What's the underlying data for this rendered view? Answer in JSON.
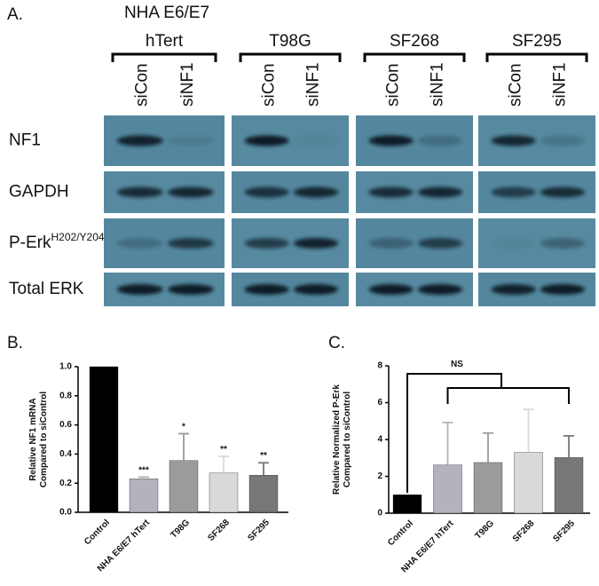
{
  "blot": {
    "panel_label": "A.",
    "cell_lines": [
      [
        "NHA E6/E7",
        "hTert"
      ],
      [
        "T98G"
      ],
      [
        "SF268"
      ],
      [
        "SF295"
      ]
    ],
    "lanes": [
      "siCon",
      "siNF1"
    ],
    "rows": [
      {
        "name": "NF1"
      },
      {
        "name": "GAPDH"
      },
      {
        "name": "P-Erk",
        "sup": "H202/Y204"
      },
      {
        "name": "Total ERK"
      }
    ]
  },
  "chart_data": [
    {
      "type": "bar",
      "panel_label": "B.",
      "y_label": [
        "Relative NF1 mRNA",
        "Compared to siControl"
      ],
      "categories": [
        "Control",
        "NHA E6/E7 hTert",
        "T98G",
        "SF268",
        "SF295"
      ],
      "values": [
        1.0,
        0.23,
        0.355,
        0.27,
        0.255
      ],
      "errors": [
        null,
        0.012,
        0.185,
        0.115,
        0.085
      ],
      "annotations": [
        null,
        "***",
        "*",
        "**",
        "**"
      ],
      "colors": [
        "#000000",
        "#b3b2bd",
        "#9b9b9b",
        "#d9d9d9",
        "#777777"
      ],
      "ylim": [
        0,
        1.0
      ],
      "yticks": [
        {
          "value": 0,
          "label": "0.0"
        },
        {
          "value": 0.2,
          "label": "0.2"
        },
        {
          "value": 0.4,
          "label": "0.4"
        },
        {
          "value": 0.6,
          "label": "0.6"
        },
        {
          "value": 0.8,
          "label": "0.8"
        },
        {
          "value": 1.0,
          "label": "1.0"
        }
      ]
    },
    {
      "type": "bar",
      "panel_label": "C.",
      "y_label": [
        "Relative Normalized P-Erk",
        "Compared to siControl"
      ],
      "categories": [
        "Control",
        "NHA E6/E7 hTert",
        "T98G",
        "SF268",
        "SF295"
      ],
      "values": [
        1.0,
        2.62,
        2.75,
        3.3,
        3.02
      ],
      "errors": [
        null,
        2.3,
        1.6,
        2.33,
        1.18
      ],
      "significance": "NS",
      "colors": [
        "#000000",
        "#b3b2bd",
        "#9b9b9b",
        "#d9d9d9",
        "#777777"
      ],
      "ylim": [
        0,
        8
      ],
      "yticks": [
        0,
        2,
        4,
        6,
        8
      ]
    }
  ]
}
